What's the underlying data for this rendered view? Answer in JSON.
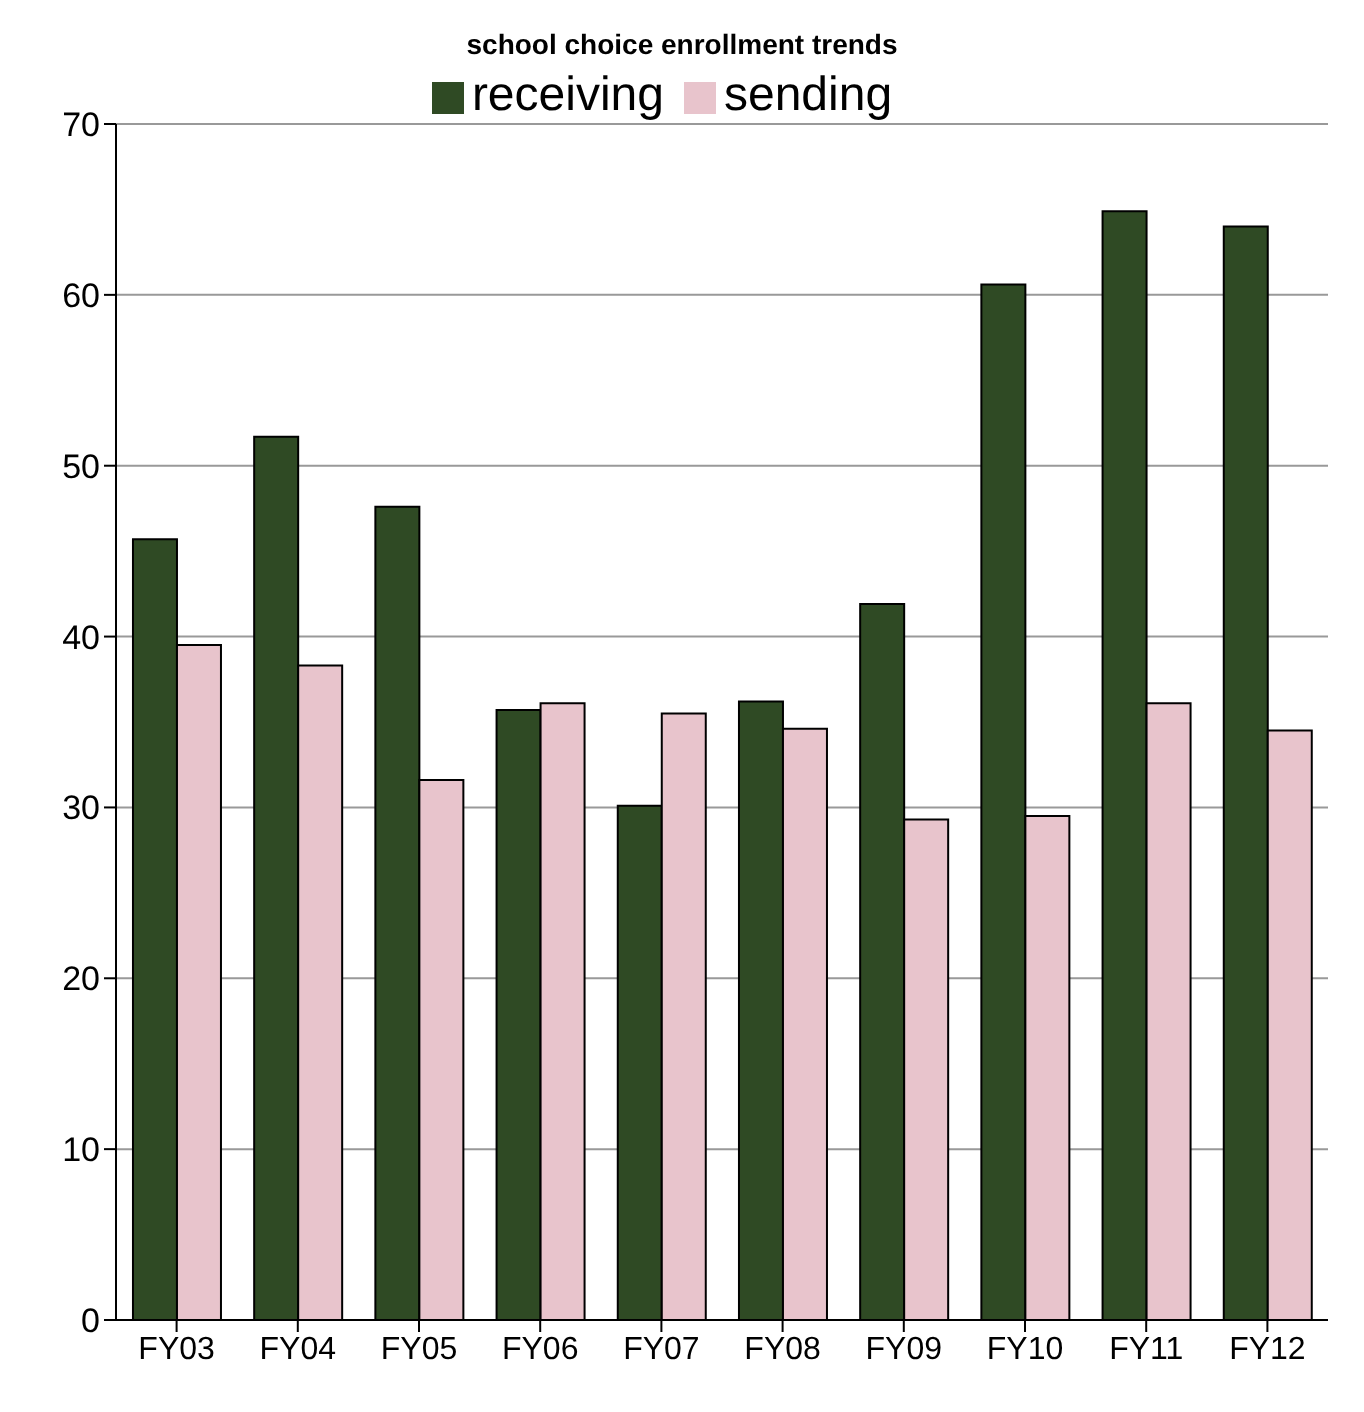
{
  "chart_data": {
    "type": "bar",
    "title": "school choice enrollment trends",
    "categories": [
      "FY03",
      "FY04",
      "FY05",
      "FY06",
      "FY07",
      "FY08",
      "FY09",
      "FY10",
      "FY11",
      "FY12"
    ],
    "series": [
      {
        "name": "receiving",
        "color": "#2f4a24",
        "values": [
          45.7,
          51.7,
          47.6,
          35.7,
          30.1,
          36.2,
          41.9,
          60.6,
          64.9,
          64.0
        ]
      },
      {
        "name": "sending",
        "color": "#e8c4cc",
        "values": [
          39.5,
          38.3,
          31.6,
          36.1,
          35.5,
          34.6,
          29.3,
          29.5,
          36.1,
          34.5
        ]
      }
    ],
    "ylim": [
      0,
      70
    ],
    "yticks": [
      0,
      10,
      20,
      30,
      40,
      50,
      60,
      70
    ],
    "grid": "y",
    "legend": "top"
  }
}
